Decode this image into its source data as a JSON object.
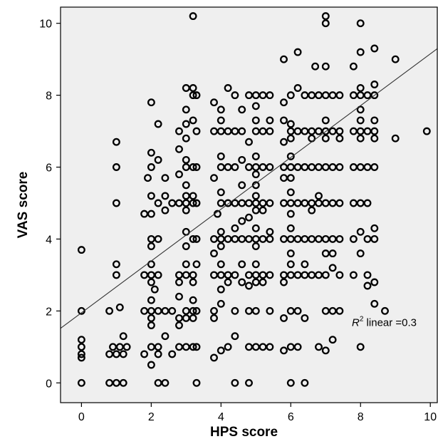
{
  "chart_data": {
    "type": "scatter",
    "title": "",
    "xlabel": "HPS score",
    "ylabel": "VAS score",
    "xlim": [
      -0.6,
      10.2
    ],
    "ylim": [
      -0.55,
      10.45
    ],
    "xticks": [
      0,
      2,
      4,
      6,
      8,
      10
    ],
    "yticks": [
      0,
      2,
      4,
      6,
      8,
      10
    ],
    "grid": false,
    "background_color": "#efefef",
    "marker": "open-circle",
    "marker_color": "#000000",
    "annotation": {
      "prefix": "R",
      "superscript": "2",
      "text": " linear =0.3"
    },
    "fit_line": {
      "type": "linear",
      "intercept": 1.95,
      "slope": 0.72,
      "color": "#333333"
    },
    "points": [
      [
        0,
        0
      ],
      [
        0,
        0.7
      ],
      [
        0,
        0.8
      ],
      [
        0,
        1.0
      ],
      [
        0,
        1.2
      ],
      [
        0,
        2.0
      ],
      [
        0,
        3.7
      ],
      [
        0.8,
        0
      ],
      [
        1,
        0
      ],
      [
        1.2,
        0
      ],
      [
        0.8,
        0.8
      ],
      [
        1,
        0.8
      ],
      [
        1.2,
        0.8
      ],
      [
        0.9,
        1.0
      ],
      [
        1.1,
        1.0
      ],
      [
        1.3,
        1.0
      ],
      [
        1.2,
        1.3
      ],
      [
        0.8,
        2.0
      ],
      [
        1.1,
        2.1
      ],
      [
        1,
        3.0
      ],
      [
        1,
        3.3
      ],
      [
        1,
        5.0
      ],
      [
        1,
        6.0
      ],
      [
        1,
        6.7
      ],
      [
        1.8,
        0.8
      ],
      [
        2,
        0.5
      ],
      [
        2,
        1.0
      ],
      [
        2.2,
        1.0
      ],
      [
        2.2,
        0.8
      ],
      [
        2.4,
        1.3
      ],
      [
        1.8,
        2.0
      ],
      [
        2,
        2.0
      ],
      [
        2,
        1.8
      ],
      [
        2,
        1.6
      ],
      [
        2.2,
        2.0
      ],
      [
        2,
        2.3
      ],
      [
        2.4,
        2.0
      ],
      [
        2.1,
        2.6
      ],
      [
        1.8,
        3.0
      ],
      [
        2,
        3.0
      ],
      [
        2.2,
        3.0
      ],
      [
        2,
        2.8
      ],
      [
        2,
        3.3
      ],
      [
        2,
        3.8
      ],
      [
        2.2,
        4.0
      ],
      [
        2,
        4.0
      ],
      [
        2,
        5.2
      ],
      [
        2.2,
        5.0
      ],
      [
        1.9,
        5.7
      ],
      [
        2,
        6.0
      ],
      [
        2,
        6.4
      ],
      [
        2.2,
        6.2
      ],
      [
        2,
        7.8
      ],
      [
        2.2,
        7.2
      ],
      [
        2.4,
        4.8
      ],
      [
        2.4,
        5.7
      ],
      [
        2.4,
        5.2
      ],
      [
        2,
        4.7
      ],
      [
        1.8,
        4.7
      ],
      [
        2.2,
        0
      ],
      [
        2.4,
        0
      ],
      [
        2.6,
        0.8
      ],
      [
        2.8,
        1.0
      ],
      [
        3,
        1.0
      ],
      [
        3.2,
        1.0
      ],
      [
        2.8,
        1.6
      ],
      [
        2.6,
        2.0
      ],
      [
        3,
        2.0
      ],
      [
        3.2,
        2.0
      ],
      [
        2.8,
        1.8
      ],
      [
        3,
        1.8
      ],
      [
        3.2,
        1.8
      ],
      [
        2.8,
        2.4
      ],
      [
        2.8,
        3.0
      ],
      [
        3,
        3.0
      ],
      [
        3.2,
        3.0
      ],
      [
        2.8,
        2.8
      ],
      [
        3.2,
        2.8
      ],
      [
        3,
        3.3
      ],
      [
        3,
        3.8
      ],
      [
        3.2,
        4.0
      ],
      [
        3,
        4.2
      ],
      [
        3.2,
        2.3
      ],
      [
        2.6,
        5.0
      ],
      [
        2.8,
        5.0
      ],
      [
        3,
        5.0
      ],
      [
        3.2,
        5.0
      ],
      [
        3,
        4.8
      ],
      [
        3,
        5.2
      ],
      [
        3.2,
        5.2
      ],
      [
        3,
        5.5
      ],
      [
        2.8,
        5.8
      ],
      [
        3,
        6.0
      ],
      [
        3.2,
        6.0
      ],
      [
        3,
        6.2
      ],
      [
        2.8,
        6.5
      ],
      [
        3,
        6.8
      ],
      [
        3,
        7.2
      ],
      [
        3.2,
        7.3
      ],
      [
        2.8,
        7.0
      ],
      [
        3,
        7.6
      ],
      [
        3,
        8.2
      ],
      [
        3.2,
        8.0
      ],
      [
        3.2,
        8.2
      ],
      [
        3.3,
        0
      ],
      [
        3.3,
        1.0
      ],
      [
        3.3,
        2.0
      ],
      [
        3.3,
        3.3
      ],
      [
        3.3,
        4.0
      ],
      [
        3.3,
        5.0
      ],
      [
        3.3,
        6.0
      ],
      [
        3.3,
        7.0
      ],
      [
        3.3,
        8.0
      ],
      [
        3.2,
        10.2
      ],
      [
        3.8,
        0.7
      ],
      [
        4,
        0.9
      ],
      [
        4.2,
        1.0
      ],
      [
        3.8,
        1.8
      ],
      [
        3.8,
        2.0
      ],
      [
        4,
        2.2
      ],
      [
        4,
        2.6
      ],
      [
        4.2,
        2.8
      ],
      [
        4,
        3.0
      ],
      [
        4.2,
        3.0
      ],
      [
        3.8,
        3.0
      ],
      [
        4,
        3.3
      ],
      [
        3.8,
        3.6
      ],
      [
        3.8,
        4.0
      ],
      [
        4,
        4.0
      ],
      [
        4.2,
        4.0
      ],
      [
        4,
        4.2
      ],
      [
        4,
        3.8
      ],
      [
        3.9,
        4.7
      ],
      [
        4,
        5.0
      ],
      [
        4.2,
        5.0
      ],
      [
        4,
        5.3
      ],
      [
        3.8,
        5.7
      ],
      [
        4,
        6.0
      ],
      [
        4.2,
        6.0
      ],
      [
        4,
        6.3
      ],
      [
        3.8,
        7.0
      ],
      [
        4,
        7.0
      ],
      [
        4.2,
        7.0
      ],
      [
        4,
        7.3
      ],
      [
        4,
        7.6
      ],
      [
        3.8,
        7.8
      ],
      [
        4.2,
        8.2
      ],
      [
        4.4,
        0
      ],
      [
        4.4,
        1.3
      ],
      [
        4.4,
        2.0
      ],
      [
        4.6,
        2.8
      ],
      [
        4.4,
        3.0
      ],
      [
        4.6,
        3.3
      ],
      [
        4.4,
        4.0
      ],
      [
        4.6,
        4.0
      ],
      [
        4.4,
        4.3
      ],
      [
        4.6,
        4.5
      ],
      [
        4.4,
        5.0
      ],
      [
        4.6,
        5.0
      ],
      [
        4.6,
        5.5
      ],
      [
        4.4,
        6.0
      ],
      [
        4.6,
        6.2
      ],
      [
        4.4,
        7.0
      ],
      [
        4.6,
        7.0
      ],
      [
        4.4,
        8.0
      ],
      [
        4.6,
        7.6
      ],
      [
        4.8,
        0
      ],
      [
        4.8,
        1.0
      ],
      [
        5,
        1.0
      ],
      [
        5.2,
        1.0
      ],
      [
        4.8,
        2.0
      ],
      [
        5,
        2.0
      ],
      [
        4.8,
        2.7
      ],
      [
        5,
        2.8
      ],
      [
        5.2,
        2.8
      ],
      [
        4.8,
        3.0
      ],
      [
        5,
        3.0
      ],
      [
        5.2,
        3.0
      ],
      [
        5,
        3.3
      ],
      [
        5,
        3.8
      ],
      [
        4.8,
        4.0
      ],
      [
        5,
        4.0
      ],
      [
        5.2,
        4.0
      ],
      [
        5,
        4.3
      ],
      [
        4.8,
        4.6
      ],
      [
        5,
        4.8
      ],
      [
        5.2,
        4.8
      ],
      [
        4.8,
        5.0
      ],
      [
        5,
        5.0
      ],
      [
        5.2,
        5.0
      ],
      [
        5,
        5.2
      ],
      [
        5,
        5.5
      ],
      [
        5,
        5.8
      ],
      [
        4.8,
        6.0
      ],
      [
        5,
        6.0
      ],
      [
        5.2,
        6.0
      ],
      [
        5,
        6.3
      ],
      [
        4.8,
        6.7
      ],
      [
        5,
        7.0
      ],
      [
        5.2,
        7.0
      ],
      [
        5,
        7.3
      ],
      [
        4.8,
        8.0
      ],
      [
        5,
        8.0
      ],
      [
        5.2,
        8.0
      ],
      [
        5,
        7.7
      ],
      [
        5.4,
        1.0
      ],
      [
        5.4,
        2.0
      ],
      [
        5.4,
        3.0
      ],
      [
        5.4,
        4.0
      ],
      [
        5.4,
        4.2
      ],
      [
        5.4,
        5.0
      ],
      [
        5.4,
        6.0
      ],
      [
        5.4,
        7.0
      ],
      [
        5.4,
        7.3
      ],
      [
        5.4,
        8.0
      ],
      [
        5.8,
        0.9
      ],
      [
        6,
        0
      ],
      [
        6,
        1.0
      ],
      [
        6.2,
        1.0
      ],
      [
        5.8,
        1.8
      ],
      [
        6,
        2.0
      ],
      [
        6.2,
        2.0
      ],
      [
        5.8,
        2.8
      ],
      [
        6,
        3.0
      ],
      [
        6.2,
        3.0
      ],
      [
        5.8,
        3.0
      ],
      [
        6,
        3.3
      ],
      [
        6,
        3.6
      ],
      [
        5.8,
        4.0
      ],
      [
        6,
        4.0
      ],
      [
        6.2,
        4.0
      ],
      [
        6,
        4.3
      ],
      [
        5.8,
        5.0
      ],
      [
        6,
        5.0
      ],
      [
        6.2,
        5.0
      ],
      [
        6,
        4.7
      ],
      [
        6,
        5.3
      ],
      [
        5.8,
        5.7
      ],
      [
        5.8,
        6.0
      ],
      [
        6,
        6.0
      ],
      [
        6.2,
        6.0
      ],
      [
        6,
        5.7
      ],
      [
        6,
        6.3
      ],
      [
        5.8,
        6.7
      ],
      [
        6,
        7.0
      ],
      [
        6.2,
        7.0
      ],
      [
        6,
        6.8
      ],
      [
        6,
        7.2
      ],
      [
        5.8,
        7.3
      ],
      [
        6,
        8.0
      ],
      [
        6.2,
        8.2
      ],
      [
        5.8,
        7.8
      ],
      [
        5.8,
        9.0
      ],
      [
        6.2,
        9.2
      ],
      [
        6.4,
        0
      ],
      [
        6.4,
        1.8
      ],
      [
        6.4,
        3.0
      ],
      [
        6.4,
        3.3
      ],
      [
        6.4,
        4.0
      ],
      [
        6.4,
        5.0
      ],
      [
        6.4,
        6.0
      ],
      [
        6.4,
        7.0
      ],
      [
        6.4,
        8.0
      ],
      [
        6.6,
        3.0
      ],
      [
        6.8,
        3.0
      ],
      [
        6.6,
        4.0
      ],
      [
        6.8,
        4.0
      ],
      [
        6.6,
        4.8
      ],
      [
        6.6,
        5.0
      ],
      [
        6.8,
        5.0
      ],
      [
        6.8,
        5.2
      ],
      [
        6.6,
        6.0
      ],
      [
        6.8,
        6.0
      ],
      [
        6.6,
        6.8
      ],
      [
        6.6,
        7.0
      ],
      [
        6.8,
        7.0
      ],
      [
        6.6,
        8.0
      ],
      [
        6.8,
        8.0
      ],
      [
        6.7,
        8.8
      ],
      [
        6.8,
        1.0
      ],
      [
        7,
        0.9
      ],
      [
        7,
        2.0
      ],
      [
        7,
        3.0
      ],
      [
        7.2,
        3.2
      ],
      [
        7,
        3.6
      ],
      [
        7,
        4.0
      ],
      [
        7.2,
        4.0
      ],
      [
        7,
        5.0
      ],
      [
        7.2,
        5.0
      ],
      [
        7,
        6.0
      ],
      [
        7.2,
        6.0
      ],
      [
        7,
        6.8
      ],
      [
        7,
        7.0
      ],
      [
        7.2,
        7.0
      ],
      [
        7,
        7.3
      ],
      [
        7,
        8.0
      ],
      [
        7.2,
        8.0
      ],
      [
        7,
        8.8
      ],
      [
        7,
        10.0
      ],
      [
        7,
        10.2
      ],
      [
        7.2,
        1.2
      ],
      [
        7.2,
        2.0
      ],
      [
        7.2,
        3.6
      ],
      [
        7.4,
        7.0
      ],
      [
        7.4,
        8.0
      ],
      [
        7.4,
        4.0
      ],
      [
        7.4,
        6.0
      ],
      [
        7.4,
        2.0
      ],
      [
        7.4,
        3.0
      ],
      [
        7.4,
        5.0
      ],
      [
        7.4,
        6.8
      ],
      [
        7.8,
        3.0
      ],
      [
        7.8,
        4.0
      ],
      [
        8,
        4.2
      ],
      [
        8.2,
        4.0
      ],
      [
        7.8,
        5.0
      ],
      [
        8,
        5.0
      ],
      [
        8.2,
        5.0
      ],
      [
        7.8,
        6.0
      ],
      [
        8,
        6.0
      ],
      [
        8.2,
        6.0
      ],
      [
        7.8,
        7.0
      ],
      [
        8,
        7.0
      ],
      [
        8.2,
        7.0
      ],
      [
        8,
        6.8
      ],
      [
        8,
        7.3
      ],
      [
        7.8,
        8.0
      ],
      [
        8,
        8.0
      ],
      [
        8.2,
        8.0
      ],
      [
        8,
        7.6
      ],
      [
        8,
        8.2
      ],
      [
        7.8,
        8.8
      ],
      [
        8,
        9.2
      ],
      [
        8,
        10.0
      ],
      [
        8,
        3.6
      ],
      [
        8,
        1.0
      ],
      [
        8.2,
        2.7
      ],
      [
        8.2,
        3.0
      ],
      [
        8.4,
        2.2
      ],
      [
        8.4,
        2.8
      ],
      [
        8.4,
        4.0
      ],
      [
        8.4,
        4.3
      ],
      [
        8.4,
        6.0
      ],
      [
        8.4,
        6.8
      ],
      [
        8.4,
        7.0
      ],
      [
        8.4,
        7.3
      ],
      [
        8.4,
        8.0
      ],
      [
        8.4,
        8.3
      ],
      [
        8.4,
        9.3
      ],
      [
        8.7,
        2.0
      ],
      [
        9,
        6.8
      ],
      [
        9,
        9.0
      ],
      [
        9.9,
        7.0
      ]
    ]
  }
}
